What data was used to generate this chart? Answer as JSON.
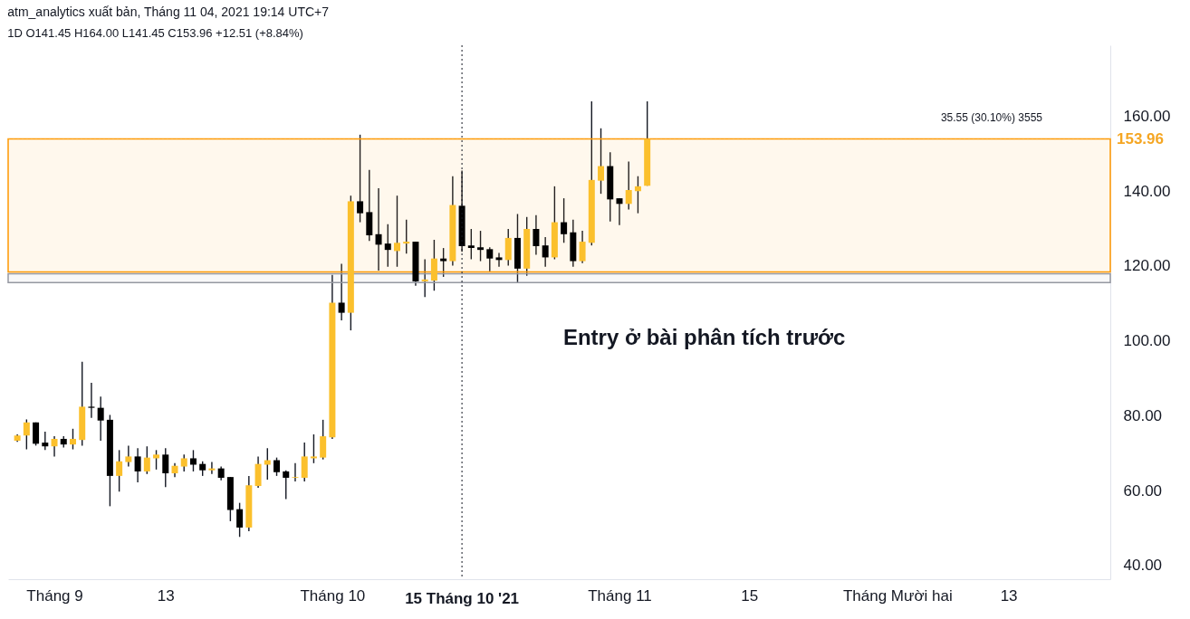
{
  "chart_data": {
    "type": "candlestick",
    "title": "atm_analytics xuất bản, Tháng 11 04, 2021 19:14 UTC+7",
    "subtitle": "1D  O141.45  H164.00  L141.45  C153.96  +12.51 (+8.84%)",
    "x": [
      "2021-08-28",
      "2021-08-29",
      "2021-08-30",
      "2021-08-31",
      "2021-09-01",
      "2021-09-02",
      "2021-09-03",
      "2021-09-04",
      "2021-09-05",
      "2021-09-06",
      "2021-09-07",
      "2021-09-08",
      "2021-09-09",
      "2021-09-10",
      "2021-09-11",
      "2021-09-12",
      "2021-09-13",
      "2021-09-14",
      "2021-09-15",
      "2021-09-16",
      "2021-09-17",
      "2021-09-18",
      "2021-09-19",
      "2021-09-20",
      "2021-09-21",
      "2021-09-22",
      "2021-09-23",
      "2021-09-24",
      "2021-09-25",
      "2021-09-26",
      "2021-09-27",
      "2021-09-28",
      "2021-09-29",
      "2021-09-30",
      "2021-10-01",
      "2021-10-02",
      "2021-10-03",
      "2021-10-04",
      "2021-10-05",
      "2021-10-06",
      "2021-10-07",
      "2021-10-08",
      "2021-10-09",
      "2021-10-10",
      "2021-10-11",
      "2021-10-12",
      "2021-10-13",
      "2021-10-14",
      "2021-10-15",
      "2021-10-16",
      "2021-10-17",
      "2021-10-18",
      "2021-10-19",
      "2021-10-20",
      "2021-10-21",
      "2021-10-22",
      "2021-10-23",
      "2021-10-24",
      "2021-10-25",
      "2021-10-26",
      "2021-10-27",
      "2021-10-28",
      "2021-10-29",
      "2021-10-30",
      "2021-10-31",
      "2021-11-01",
      "2021-11-02",
      "2021-11-03",
      "2021-11-04"
    ],
    "ohlc": [
      [
        73.3,
        75.0,
        73.0,
        74.7
      ],
      [
        74.7,
        79.0,
        71.0,
        78.2
      ],
      [
        78.2,
        78.2,
        72.0,
        72.5
      ],
      [
        72.8,
        75.7,
        70.8,
        71.8
      ],
      [
        71.8,
        74.5,
        69.1,
        73.8
      ],
      [
        73.8,
        74.5,
        71.5,
        72.3
      ],
      [
        72.3,
        76.5,
        71.0,
        73.8
      ],
      [
        73.5,
        94.4,
        72.0,
        82.4
      ],
      [
        82.4,
        88.8,
        79.4,
        82.1
      ],
      [
        82.1,
        85.1,
        73.3,
        78.7
      ],
      [
        78.9,
        80.2,
        55.8,
        63.9
      ],
      [
        63.9,
        70.8,
        59.7,
        67.8
      ],
      [
        67.6,
        72.0,
        66.4,
        69.1
      ],
      [
        69.1,
        71.3,
        62.2,
        65.1
      ],
      [
        65.1,
        71.8,
        64.4,
        68.8
      ],
      [
        68.6,
        70.8,
        65.6,
        69.6
      ],
      [
        69.6,
        71.3,
        60.9,
        64.6
      ],
      [
        64.6,
        67.3,
        63.6,
        66.6
      ],
      [
        66.4,
        69.6,
        65.1,
        68.6
      ],
      [
        68.6,
        70.8,
        65.1,
        66.9
      ],
      [
        67.1,
        67.8,
        63.9,
        65.4
      ],
      [
        65.4,
        67.6,
        64.4,
        65.9
      ],
      [
        65.9,
        66.4,
        62.7,
        63.4
      ],
      [
        63.6,
        63.6,
        51.8,
        54.8
      ],
      [
        55.0,
        56.7,
        47.6,
        50.1
      ],
      [
        50.1,
        63.9,
        49.1,
        61.4
      ],
      [
        61.2,
        69.1,
        60.7,
        67.1
      ],
      [
        66.9,
        71.3,
        62.9,
        68.1
      ],
      [
        68.1,
        68.8,
        63.9,
        64.9
      ],
      [
        65.1,
        65.4,
        57.7,
        63.4
      ],
      [
        63.4,
        67.3,
        62.4,
        63.6
      ],
      [
        63.4,
        72.8,
        62.4,
        69.1
      ],
      [
        68.6,
        75.0,
        67.3,
        69.1
      ],
      [
        68.8,
        78.9,
        68.3,
        74.5
      ],
      [
        74.2,
        117.6,
        73.8,
        110.2
      ],
      [
        110.2,
        120.6,
        105.5,
        107.5
      ],
      [
        107.5,
        138.8,
        102.8,
        137.3
      ],
      [
        137.3,
        155.1,
        131.7,
        134.1
      ],
      [
        134.4,
        145.7,
        126.7,
        128.2
      ],
      [
        128.5,
        140.8,
        118.8,
        125.7
      ],
      [
        126.0,
        131.2,
        119.8,
        124.3
      ],
      [
        124.0,
        138.8,
        119.8,
        126.2
      ],
      [
        126.0,
        132.4,
        123.3,
        126.5
      ],
      [
        126.5,
        126.5,
        114.7,
        115.9
      ],
      [
        115.9,
        121.8,
        111.7,
        116.4
      ],
      [
        116.1,
        127.0,
        113.4,
        122.0
      ],
      [
        122.0,
        124.8,
        117.1,
        121.3
      ],
      [
        121.3,
        144.0,
        120.1,
        136.3
      ],
      [
        136.1,
        145.5,
        123.8,
        125.3
      ],
      [
        125.5,
        129.9,
        121.8,
        124.8
      ],
      [
        125.0,
        129.4,
        121.3,
        124.3
      ],
      [
        124.5,
        125.0,
        118.6,
        122.0
      ],
      [
        122.3,
        123.5,
        119.8,
        121.6
      ],
      [
        121.6,
        129.9,
        120.1,
        127.5
      ],
      [
        127.5,
        133.9,
        115.4,
        119.3
      ],
      [
        119.3,
        133.1,
        117.4,
        129.9
      ],
      [
        129.9,
        133.6,
        123.0,
        125.3
      ],
      [
        125.5,
        127.7,
        119.8,
        122.3
      ],
      [
        122.3,
        141.3,
        121.8,
        131.7
      ],
      [
        131.7,
        138.1,
        126.2,
        128.5
      ],
      [
        129.0,
        132.4,
        119.8,
        121.3
      ],
      [
        121.3,
        129.4,
        120.8,
        126.5
      ],
      [
        126.2,
        164.0,
        125.5,
        143.0
      ],
      [
        142.8,
        156.8,
        139.3,
        146.7
      ],
      [
        146.7,
        150.4,
        131.9,
        137.8
      ],
      [
        138.1,
        138.1,
        130.9,
        136.6
      ],
      [
        136.6,
        147.9,
        135.1,
        140.3
      ],
      [
        140.0,
        144.0,
        134.1,
        141.3
      ],
      [
        141.45,
        164.0,
        141.45,
        153.96
      ]
    ],
    "colors": [
      "#fbc02d",
      "#fbc02d",
      "#000000",
      "#000000",
      "#fbc02d",
      "#000000",
      "#fbc02d",
      "#fbc02d",
      "#000000",
      "#000000",
      "#000000",
      "#fbc02d",
      "#fbc02d",
      "#000000",
      "#fbc02d",
      "#fbc02d",
      "#000000",
      "#fbc02d",
      "#fbc02d",
      "#000000",
      "#000000",
      "#fbc02d",
      "#000000",
      "#000000",
      "#000000",
      "#fbc02d",
      "#fbc02d",
      "#fbc02d",
      "#000000",
      "#000000",
      "#fbc02d",
      "#fbc02d",
      "#fbc02d",
      "#fbc02d",
      "#fbc02d",
      "#000000",
      "#fbc02d",
      "#000000",
      "#000000",
      "#000000",
      "#000000",
      "#fbc02d",
      "#fbc02d",
      "#000000",
      "#fbc02d",
      "#fbc02d",
      "#000000",
      "#fbc02d",
      "#000000",
      "#000000",
      "#000000",
      "#000000",
      "#000000",
      "#fbc02d",
      "#000000",
      "#fbc02d",
      "#000000",
      "#000000",
      "#fbc02d",
      "#000000",
      "#000000",
      "#fbc02d",
      "#fbc02d",
      "#fbc02d",
      "#000000",
      "#000000",
      "#fbc02d",
      "#fbc02d",
      "#fbc02d"
    ],
    "xlim": [
      "2021-08-27T12:00",
      "2021-12-23T12:00"
    ],
    "xticks": [
      {
        "value": "2021-09-01",
        "label": "Tháng 9"
      },
      {
        "value": "2021-09-13",
        "label": "13"
      },
      {
        "value": "2021-10-01",
        "label": "Tháng 10"
      },
      {
        "value": "2021-11-01",
        "label": "Tháng 11"
      },
      {
        "value": "2021-11-15",
        "label": "15"
      },
      {
        "value": "2021-12-01",
        "label": "Tháng Mười hai"
      },
      {
        "value": "2021-12-13",
        "label": "13"
      }
    ],
    "ylim": [
      36.3,
      179
    ],
    "yticks": [
      {
        "value": 40,
        "label": "40.00"
      },
      {
        "value": 60,
        "label": "60.00"
      },
      {
        "value": 80,
        "label": "80.00"
      },
      {
        "value": 100,
        "label": "100.00"
      },
      {
        "value": 120,
        "label": "120.00"
      },
      {
        "value": 140,
        "label": "140.00"
      },
      {
        "value": 160,
        "label": "160.00"
      }
    ],
    "ref_lines": [
      {
        "axis": "x",
        "value": "2021-10-15",
        "label": "15 Tháng 10 '21",
        "color": "#131722",
        "line_style": "dotted"
      },
      {
        "axis": "y",
        "value": 153.96,
        "label": "153.96",
        "color": "#f5a623",
        "line_style": "dotted"
      }
    ],
    "bands": [
      {
        "axis": "y",
        "from": 115.6,
        "to": 117.9,
        "label": null,
        "color": "#9598a1"
      },
      {
        "axis": "y",
        "from": 118.41,
        "to": 153.96,
        "label": "35.55 (30.10%) 3555",
        "color": "#ff9800"
      }
    ],
    "annotations": [
      {
        "text": "Entry ở bài phân tích trước",
        "x": "2021-10-23",
        "y": 115.6
      }
    ]
  }
}
